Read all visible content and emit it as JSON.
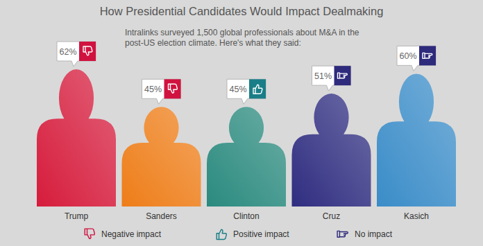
{
  "chart_data": {
    "type": "pictograph",
    "title": "How Presidential Candidates Would Impact Dealmaking",
    "subtitle": "Intralinks surveyed 1,500 global professionals about M&A in the post-US election climate. Here's what they said:",
    "categories": [
      "Trump",
      "Sanders",
      "Clinton",
      "Cruz",
      "Kasich"
    ],
    "values": [
      62,
      45,
      45,
      51,
      60
    ],
    "value_labels": [
      "62%",
      "45%",
      "45%",
      "51%",
      "60%"
    ],
    "colors": [
      "#d61c3c",
      "#ee7d18",
      "#2a8a7e",
      "#2f2d80",
      "#3a8cc8"
    ],
    "impact": [
      "Negative impact",
      "Negative impact",
      "Positive impact",
      "No impact",
      "No impact"
    ],
    "impacts": [
      {
        "name": "Negative impact",
        "color": "#d0123f"
      },
      {
        "name": "Positive impact",
        "color": "#197e87"
      },
      {
        "name": "No impact",
        "color": "#2e2a7c"
      }
    ],
    "ylim": [
      0,
      62
    ],
    "data_labels": true,
    "tick_labels": "x",
    "legend": "bottom"
  }
}
